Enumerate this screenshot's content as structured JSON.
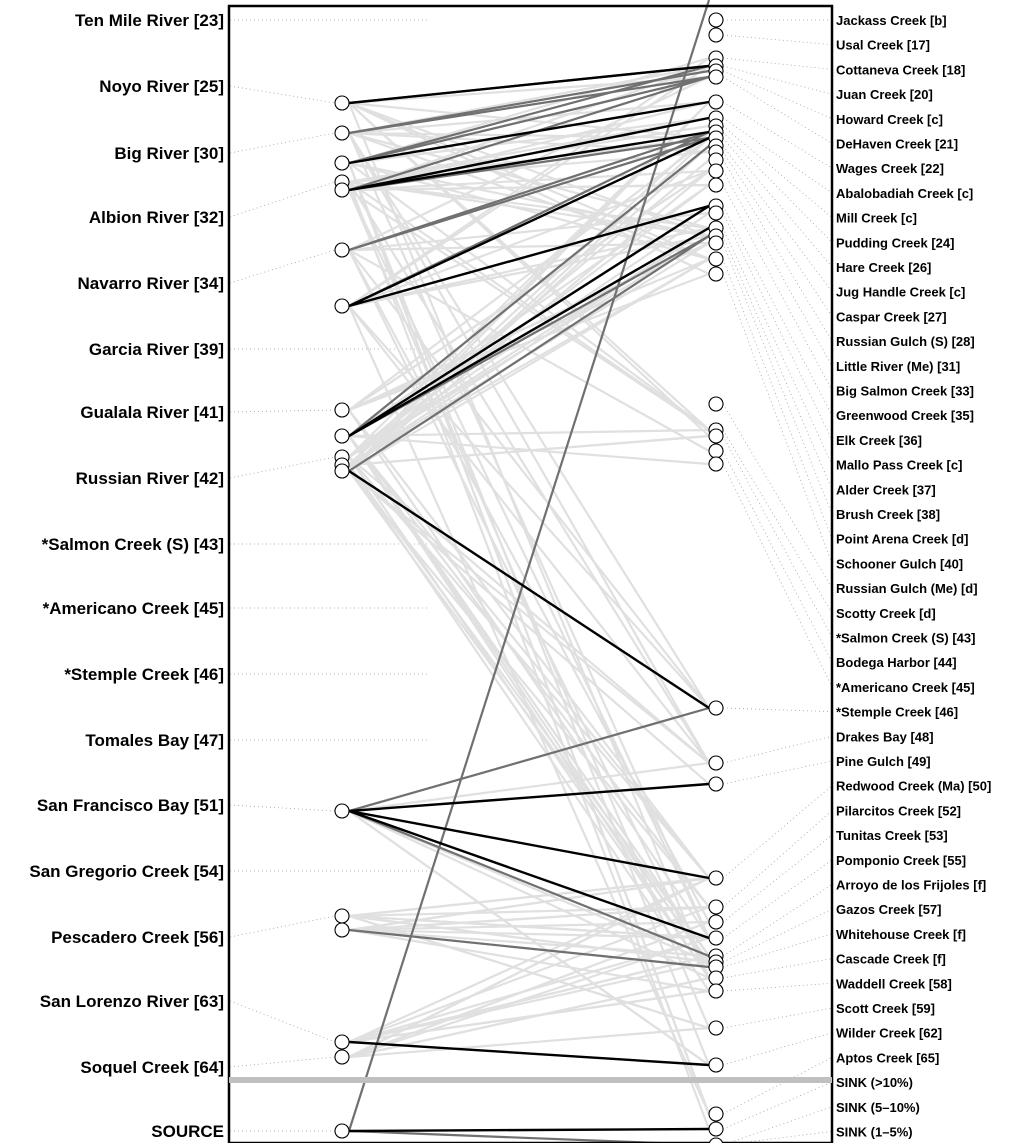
{
  "sources": [
    {
      "label": "Ten Mile River [23]",
      "nodes": []
    },
    {
      "label": "Noyo River [25]",
      "nodes": [
        0
      ]
    },
    {
      "label": "Big River [30]",
      "nodes": [
        1,
        2
      ]
    },
    {
      "label": "Albion River [32]",
      "nodes": [
        3,
        4
      ]
    },
    {
      "label": "Navarro River [34]",
      "nodes": [
        5,
        6
      ]
    },
    {
      "label": "Garcia River [39]",
      "nodes": []
    },
    {
      "label": "Gualala River [41]",
      "nodes": [
        7,
        8
      ]
    },
    {
      "label": "Russian River [42]",
      "nodes": [
        9,
        10,
        11
      ]
    },
    {
      "label": "*Salmon Creek (S) [43]",
      "nodes": []
    },
    {
      "label": "*Americano Creek [45]",
      "nodes": []
    },
    {
      "label": "*Stemple Creek [46]",
      "nodes": []
    },
    {
      "label": "Tomales Bay [47]",
      "nodes": []
    },
    {
      "label": "San Francisco Bay [51]",
      "nodes": [
        12
      ]
    },
    {
      "label": "San Gregorio Creek [54]",
      "nodes": []
    },
    {
      "label": "Pescadero Creek [56]",
      "nodes": [
        13,
        14
      ]
    },
    {
      "label": "San Lorenzo River [63]",
      "nodes": [
        15
      ]
    },
    {
      "label": "Soquel Creek [64]",
      "nodes": [
        16
      ]
    },
    {
      "label": "SOURCE",
      "nodes": [
        17
      ]
    }
  ],
  "sinks": [
    "Jackass Creek [b]",
    "Usal Creek [17]",
    "Cottaneva Creek [18]",
    "Juan Creek [20]",
    "Howard Creek [c]",
    "DeHaven Creek [21]",
    "Wages Creek [22]",
    "Abalobadiah Creek [c]",
    "Mill Creek  [c]",
    "Pudding Creek [24]",
    "Hare Creek [26]",
    "Jug Handle Creek [c]",
    "Caspar Creek [27]",
    "Russian Gulch (S) [28]",
    "Little River (Me) [31]",
    "Big Salmon Creek [33]",
    "Greenwood Creek [35]",
    "Elk Creek [36]",
    "Mallo Pass Creek [c]",
    "Alder Creek [37]",
    "Brush Creek [38]",
    "Point Arena Creek [d]",
    "Schooner Gulch [40]",
    "Russian Gulch (Me) [d]",
    "Scotty Creek [d]",
    "*Salmon Creek (S) [43]",
    "Bodega Harbor [44]",
    "*Americano Creek [45]",
    "*Stemple Creek [46]",
    "Drakes Bay [48]",
    "Pine Gulch [49]",
    "Redwood Creek (Ma) [50]",
    "Pilarcitos Creek [52]",
    "Tunitas Creek [53]",
    "Pomponio Creek [55]",
    "Arroyo de los Frijoles [f]",
    "Gazos Creek [57]",
    "Whitehouse Creek [f]",
    "Cascade Creek [f]",
    "Waddell Creek [58]",
    "Scott Creek [59]",
    "Wilder Creek [62]",
    "Aptos Creek [65]",
    "SINK (>10%)",
    "SINK (5–10%)",
    "SINK (1–5%)"
  ],
  "styles": {
    "strong": "#000000",
    "medium": "#707070",
    "weak": "#e0e0e0",
    "divider": "#c0c0c0",
    "guide": "#a0a0a0"
  },
  "connections": [
    {
      "from": 0,
      "to": 3,
      "strength": "strong"
    },
    {
      "from": 0,
      "to": 3,
      "strength": "medium"
    },
    {
      "from": 1,
      "to": 4,
      "strength": "medium"
    },
    {
      "from": 1,
      "to": 5,
      "strength": "medium"
    },
    {
      "from": 2,
      "to": 6,
      "strength": "strong"
    },
    {
      "from": 2,
      "to": 3,
      "strength": "medium"
    },
    {
      "from": 2,
      "to": 5,
      "strength": "medium"
    },
    {
      "from": 4,
      "to": 7,
      "strength": "strong"
    },
    {
      "from": 4,
      "to": 9,
      "strength": "strong"
    },
    {
      "from": 4,
      "to": 10,
      "strength": "medium"
    },
    {
      "from": 4,
      "to": 5,
      "strength": "medium"
    },
    {
      "from": 5,
      "to": 10,
      "strength": "medium"
    },
    {
      "from": 5,
      "to": 9,
      "strength": "medium"
    },
    {
      "from": 6,
      "to": 10,
      "strength": "strong"
    },
    {
      "from": 6,
      "to": 9,
      "strength": "medium"
    },
    {
      "from": 6,
      "to": 16,
      "strength": "strong"
    },
    {
      "from": 8,
      "to": 16,
      "strength": "strong"
    },
    {
      "from": 8,
      "to": 18,
      "strength": "strong"
    },
    {
      "from": 8,
      "to": 19,
      "strength": "medium"
    },
    {
      "from": 8,
      "to": 11,
      "strength": "medium"
    },
    {
      "from": 11,
      "to": 28,
      "strength": "strong"
    },
    {
      "from": 11,
      "to": 19,
      "strength": "medium"
    },
    {
      "from": 12,
      "to": 28,
      "strength": "medium"
    },
    {
      "from": 12,
      "to": 30,
      "strength": "strong"
    },
    {
      "from": 12,
      "to": 31,
      "strength": "strong"
    },
    {
      "from": 12,
      "to": 34,
      "strength": "strong"
    },
    {
      "from": 12,
      "to": 35,
      "strength": "medium"
    },
    {
      "from": 14,
      "to": 37,
      "strength": "medium"
    },
    {
      "from": 15,
      "to": 41,
      "strength": "strong"
    },
    {
      "from": 17,
      "to": 43,
      "strength": "strong"
    },
    {
      "from": 17,
      "to": 44,
      "strength": "medium"
    },
    {
      "from": 17,
      "to": 45,
      "strength": "medium"
    }
  ]
}
